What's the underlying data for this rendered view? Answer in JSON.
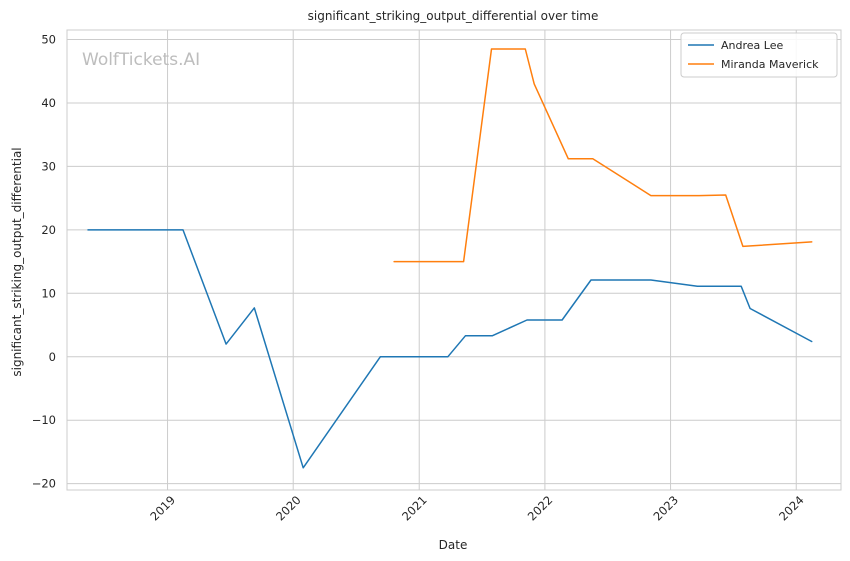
{
  "chart_data": {
    "type": "line",
    "title": "significant_striking_output_differential over time",
    "xlabel": "Date",
    "ylabel": "significant_striking_output_differential",
    "watermark": "WolfTickets.AI",
    "grid": true,
    "legend_position": "top-right",
    "xlim": [
      "2018-03-15",
      "2024-05-10"
    ],
    "ylim": [
      -21,
      51.5
    ],
    "x_ticks": [
      {
        "date": "2019-01-01",
        "label": "2019"
      },
      {
        "date": "2020-01-01",
        "label": "2020"
      },
      {
        "date": "2021-01-01",
        "label": "2021"
      },
      {
        "date": "2022-01-01",
        "label": "2022"
      },
      {
        "date": "2023-01-01",
        "label": "2023"
      },
      {
        "date": "2024-01-01",
        "label": "2024"
      }
    ],
    "y_ticks": [
      {
        "value": 50,
        "label": "50"
      },
      {
        "value": 40,
        "label": "40"
      },
      {
        "value": 30,
        "label": "30"
      },
      {
        "value": 20,
        "label": "20"
      },
      {
        "value": 10,
        "label": "10"
      },
      {
        "value": 0,
        "label": "0"
      },
      {
        "value": -10,
        "label": "−10"
      },
      {
        "value": -20,
        "label": "−20"
      }
    ],
    "series": [
      {
        "name": "Andrea Lee",
        "color": "#1f77b4",
        "points": [
          [
            "2018-05-15",
            20.0
          ],
          [
            "2019-02-15",
            20.0
          ],
          [
            "2019-06-20",
            2.0
          ],
          [
            "2019-09-10",
            7.7
          ],
          [
            "2020-01-30",
            -17.5
          ],
          [
            "2020-09-10",
            0.0
          ],
          [
            "2021-03-25",
            0.0
          ],
          [
            "2021-05-15",
            3.3
          ],
          [
            "2021-08-01",
            3.3
          ],
          [
            "2021-11-10",
            5.8
          ],
          [
            "2022-02-20",
            5.8
          ],
          [
            "2022-05-15",
            12.1
          ],
          [
            "2022-11-05",
            12.1
          ],
          [
            "2023-03-20",
            11.1
          ],
          [
            "2023-07-25",
            11.1
          ],
          [
            "2023-08-20",
            7.6
          ],
          [
            "2024-02-15",
            2.4
          ]
        ]
      },
      {
        "name": "Miranda Maverick",
        "color": "#ff7f0e",
        "points": [
          [
            "2020-10-20",
            15.0
          ],
          [
            "2021-05-10",
            15.0
          ],
          [
            "2021-07-30",
            48.5
          ],
          [
            "2021-11-05",
            48.5
          ],
          [
            "2021-12-01",
            43.0
          ],
          [
            "2022-03-10",
            31.2
          ],
          [
            "2022-05-20",
            31.2
          ],
          [
            "2022-11-05",
            25.4
          ],
          [
            "2023-03-25",
            25.4
          ],
          [
            "2023-06-10",
            25.5
          ],
          [
            "2023-07-30",
            17.4
          ],
          [
            "2024-02-15",
            18.1
          ]
        ]
      }
    ]
  }
}
